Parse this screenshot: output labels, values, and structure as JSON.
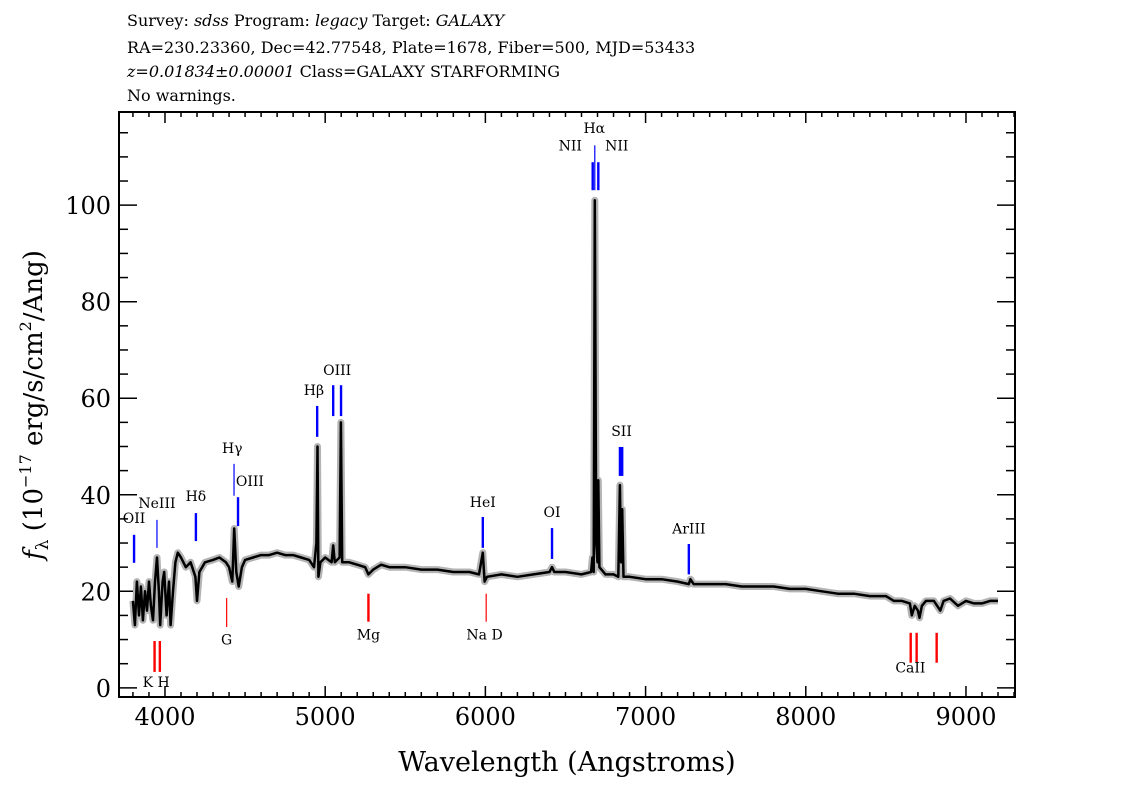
{
  "header": {
    "line1": {
      "survey_label": "Survey: ",
      "survey": "sdss",
      "program_label": " Program: ",
      "program": "legacy",
      "target_label": " Target: ",
      "target": "GALAXY"
    },
    "line2": "RA=230.23360, Dec=42.77548, Plate=1678, Fiber=500, MJD=53433",
    "line3": {
      "redshift": "z=0.01834±0.00001",
      "class": " Class=GALAXY STARFORMING"
    },
    "line4": "No warnings."
  },
  "chart_data": {
    "type": "line",
    "xlabel": "Wavelength (Angstroms)",
    "ylabel": {
      "f": "f",
      "sub": "λ",
      "rest1": " (10",
      "sup1": "−17",
      "rest2": " erg/s/cm",
      "sup2": "2",
      "rest3": "/Ang)"
    },
    "xlim": [
      3713,
      9306
    ],
    "ylim": [
      -1.9,
      119.3
    ],
    "xticks": [
      4000,
      5000,
      6000,
      7000,
      8000,
      9000
    ],
    "yticks": [
      0,
      20,
      40,
      60,
      80,
      100
    ],
    "x_minor_step": 100,
    "y_minor_step": 5,
    "grid": false,
    "colors": {
      "spectrum": "#000000",
      "error": "#b4b4b4",
      "emission": "#0000ff",
      "absorption": "#ff0000"
    },
    "spectrum": [
      [
        3800,
        18
      ],
      [
        3812,
        13
      ],
      [
        3825,
        22
      ],
      [
        3838,
        15
      ],
      [
        3850,
        21
      ],
      [
        3862,
        14
      ],
      [
        3875,
        20
      ],
      [
        3888,
        16
      ],
      [
        3900,
        22
      ],
      [
        3912,
        17
      ],
      [
        3925,
        14
      ],
      [
        3938,
        22
      ],
      [
        3950,
        27
      ],
      [
        3962,
        20
      ],
      [
        3970,
        13
      ],
      [
        3985,
        22
      ],
      [
        3995,
        24
      ],
      [
        4010,
        15
      ],
      [
        4025,
        22
      ],
      [
        4035,
        13
      ],
      [
        4050,
        20
      ],
      [
        4065,
        26
      ],
      [
        4080,
        28
      ],
      [
        4100,
        27
      ],
      [
        4130,
        25
      ],
      [
        4160,
        26
      ],
      [
        4190,
        23
      ],
      [
        4200,
        18
      ],
      [
        4215,
        24
      ],
      [
        4250,
        26
      ],
      [
        4300,
        26.5
      ],
      [
        4340,
        27
      ],
      [
        4380,
        26
      ],
      [
        4400,
        25
      ],
      [
        4420,
        22
      ],
      [
        4432,
        33
      ],
      [
        4445,
        24
      ],
      [
        4460,
        21
      ],
      [
        4480,
        25
      ],
      [
        4500,
        26.5
      ],
      [
        4550,
        27
      ],
      [
        4600,
        27.5
      ],
      [
        4650,
        27.5
      ],
      [
        4700,
        28
      ],
      [
        4750,
        27.5
      ],
      [
        4800,
        27.5
      ],
      [
        4850,
        27
      ],
      [
        4900,
        26.5
      ],
      [
        4930,
        25
      ],
      [
        4945,
        30
      ],
      [
        4952,
        50
      ],
      [
        4958,
        23
      ],
      [
        4970,
        26
      ],
      [
        5000,
        27
      ],
      [
        5040,
        26
      ],
      [
        5050,
        29.5
      ],
      [
        5060,
        26
      ],
      [
        5090,
        27
      ],
      [
        5098,
        55
      ],
      [
        5106,
        26
      ],
      [
        5150,
        26
      ],
      [
        5200,
        25.5
      ],
      [
        5250,
        25
      ],
      [
        5270,
        23.5
      ],
      [
        5300,
        24.5
      ],
      [
        5350,
        25.5
      ],
      [
        5400,
        25
      ],
      [
        5500,
        25
      ],
      [
        5600,
        24.5
      ],
      [
        5700,
        24.5
      ],
      [
        5800,
        24
      ],
      [
        5900,
        24
      ],
      [
        5960,
        23.5
      ],
      [
        5984,
        28
      ],
      [
        5995,
        22
      ],
      [
        6010,
        23
      ],
      [
        6100,
        23.5
      ],
      [
        6200,
        23
      ],
      [
        6300,
        23.5
      ],
      [
        6400,
        24
      ],
      [
        6416,
        25
      ],
      [
        6430,
        24
      ],
      [
        6500,
        24
      ],
      [
        6600,
        23.5
      ],
      [
        6660,
        24
      ],
      [
        6668,
        27
      ],
      [
        6676,
        24
      ],
      [
        6683,
        101
      ],
      [
        6692,
        30
      ],
      [
        6700,
        26
      ],
      [
        6705,
        43
      ],
      [
        6712,
        25
      ],
      [
        6750,
        23.5
      ],
      [
        6800,
        23.5
      ],
      [
        6830,
        23
      ],
      [
        6840,
        42
      ],
      [
        6847,
        26
      ],
      [
        6854,
        37
      ],
      [
        6862,
        23
      ],
      [
        6900,
        23
      ],
      [
        7000,
        22.5
      ],
      [
        7100,
        22.5
      ],
      [
        7200,
        22
      ],
      [
        7270,
        21.5
      ],
      [
        7280,
        22.5
      ],
      [
        7300,
        21.5
      ],
      [
        7400,
        21.5
      ],
      [
        7500,
        21.5
      ],
      [
        7600,
        21
      ],
      [
        7700,
        21
      ],
      [
        7800,
        21
      ],
      [
        7900,
        20.5
      ],
      [
        8000,
        20.5
      ],
      [
        8100,
        20
      ],
      [
        8200,
        19.5
      ],
      [
        8300,
        19.5
      ],
      [
        8400,
        19
      ],
      [
        8500,
        19
      ],
      [
        8550,
        18
      ],
      [
        8600,
        18
      ],
      [
        8650,
        17.5
      ],
      [
        8662,
        15
      ],
      [
        8680,
        17
      ],
      [
        8700,
        16
      ],
      [
        8710,
        14.5
      ],
      [
        8725,
        17
      ],
      [
        8750,
        18
      ],
      [
        8800,
        18
      ],
      [
        8840,
        16
      ],
      [
        8860,
        18
      ],
      [
        8900,
        18.5
      ],
      [
        8950,
        17
      ],
      [
        9000,
        18
      ],
      [
        9050,
        17.5
      ],
      [
        9100,
        17.5
      ],
      [
        9150,
        18
      ],
      [
        9200,
        18
      ]
    ],
    "lines": [
      {
        "label": "OII",
        "wave": 3807,
        "type": "emission",
        "flux_range": [
          25.9,
          31.7
        ],
        "label_wave": 3807,
        "label_flux": 34.2,
        "thin": false
      },
      {
        "label": "NeIII",
        "wave": 3950,
        "type": "emission",
        "flux_range": [
          29,
          34.8
        ],
        "label_wave": 3950,
        "label_flux": 37.3,
        "thin": true
      },
      {
        "label": "Hδ",
        "wave": 4193,
        "type": "emission",
        "flux_range": [
          30.4,
          36.2
        ],
        "label_wave": 4193,
        "label_flux": 38.7,
        "thin": false
      },
      {
        "label": "Hγ",
        "wave": 4431,
        "type": "emission",
        "flux_range": [
          39.8,
          46.4
        ],
        "label_wave": 4420,
        "label_flux": 48.7,
        "thin": true
      },
      {
        "label": "OIII",
        "wave": 4456,
        "type": "emission",
        "flux_range": [
          33.5,
          39.5
        ],
        "label_wave": 4530,
        "label_flux": 41.8,
        "thin": false
      },
      {
        "label": "Hβ",
        "wave": 4950,
        "type": "emission",
        "flux_range": [
          52,
          58.4
        ],
        "label_wave": 4930,
        "label_flux": 60.7,
        "thin": false
      },
      {
        "label": "",
        "wave": 5050,
        "type": "emission",
        "flux_range": [
          56.3,
          62.7
        ],
        "label_wave": 5050,
        "label_flux": 0,
        "thin": false
      },
      {
        "label": "OIII",
        "wave": 5099,
        "type": "emission",
        "flux_range": [
          56.3,
          62.7
        ],
        "label_wave": 5075,
        "label_flux": 64.8,
        "thin": false
      },
      {
        "label": "HeI",
        "wave": 5984,
        "type": "emission",
        "flux_range": [
          29,
          35.4
        ],
        "label_wave": 5984,
        "label_flux": 37.5,
        "thin": false
      },
      {
        "label": "OI",
        "wave": 6416,
        "type": "emission",
        "flux_range": [
          26.7,
          33.1
        ],
        "label_wave": 6416,
        "label_flux": 35.4,
        "thin": false
      },
      {
        "label": "NII",
        "wave": 6670,
        "type": "emission",
        "flux_range": [
          103.1,
          108.9
        ],
        "label_wave": 6530,
        "label_flux": 111.3,
        "thin": false
      },
      {
        "label": "Hα",
        "wave": 6683,
        "type": "emission",
        "flux_range": [
          103.1,
          112.4
        ],
        "label_wave": 6680,
        "label_flux": 115,
        "thin": true
      },
      {
        "label": "NII",
        "wave": 6705,
        "type": "emission",
        "flux_range": [
          103.1,
          108.9
        ],
        "label_wave": 6820,
        "label_flux": 111.3,
        "thin": false
      },
      {
        "label": "",
        "wave": 6840,
        "type": "emission",
        "flux_range": [
          43.9,
          49.9
        ],
        "label_wave": 6840,
        "label_flux": 0,
        "thin": false
      },
      {
        "label": "SII",
        "wave": 6854,
        "type": "emission",
        "flux_range": [
          43.9,
          49.9
        ],
        "label_wave": 6850,
        "label_flux": 52.2,
        "thin": false
      },
      {
        "label": "ArIII",
        "wave": 7270,
        "type": "emission",
        "flux_range": [
          23.5,
          29.8
        ],
        "label_wave": 7270,
        "label_flux": 32,
        "thin": false
      },
      {
        "label": "",
        "wave": 3935,
        "type": "absorption",
        "flux_range": [
          3.3,
          9.7
        ],
        "label_wave": 3935,
        "label_flux": 0,
        "thin": false
      },
      {
        "label": "K H",
        "wave": 3968,
        "type": "absorption",
        "flux_range": [
          3.3,
          9.7
        ],
        "label_wave": 3945,
        "label_flux": 0.2,
        "thin": false
      },
      {
        "label": "G",
        "wave": 4385,
        "type": "absorption",
        "flux_range": [
          12.6,
          18.6
        ],
        "label_wave": 4385,
        "label_flux": 9,
        "thin": true
      },
      {
        "label": "Mg",
        "wave": 5270,
        "type": "absorption",
        "flux_range": [
          13.7,
          19.5
        ],
        "label_wave": 5270,
        "label_flux": 10,
        "thin": false
      },
      {
        "label": "Na D",
        "wave": 6005,
        "type": "absorption",
        "flux_range": [
          13.7,
          19.5
        ],
        "label_wave": 5995,
        "label_flux": 10,
        "thin": true
      },
      {
        "label": "",
        "wave": 8655,
        "type": "absorption",
        "flux_range": [
          5.2,
          11.4
        ],
        "label_wave": 8655,
        "label_flux": 0,
        "thin": false
      },
      {
        "label": "CaII",
        "wave": 8692,
        "type": "absorption",
        "flux_range": [
          5.2,
          11.4
        ],
        "label_wave": 8653,
        "label_flux": 3.2,
        "thin": false
      },
      {
        "label": "",
        "wave": 8817,
        "type": "absorption",
        "flux_range": [
          5.2,
          11.4
        ],
        "label_wave": 8817,
        "label_flux": 0,
        "thin": false
      }
    ]
  }
}
